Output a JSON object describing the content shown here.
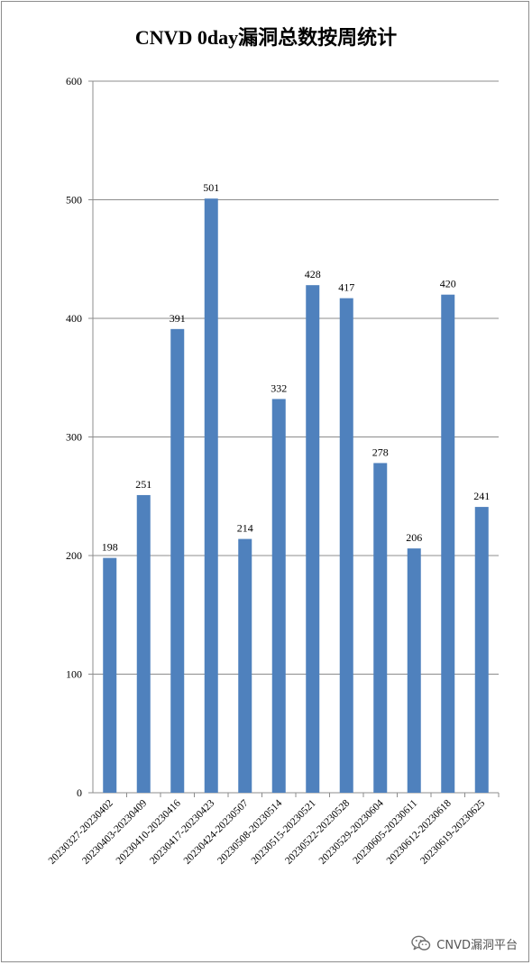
{
  "chart_data": {
    "type": "bar",
    "title": "CNVD 0day漏洞总数按周统计",
    "xlabel": "",
    "ylabel": "",
    "ylim": [
      0,
      600
    ],
    "yticks": [
      0,
      100,
      200,
      300,
      400,
      500,
      600
    ],
    "grid": true,
    "legend": "none",
    "bar_color": "#4f81bd",
    "categories": [
      "20230327-20230402",
      "20230403-20230409",
      "20230410-20230416",
      "20230417-20230423",
      "20230424-20230507",
      "20230508-20230514",
      "20230515-20230521",
      "20230522-20230528",
      "20230529-20230604",
      "20230605-20230611",
      "20230612-20230618",
      "20230619-20230625"
    ],
    "values": [
      198,
      251,
      391,
      501,
      214,
      332,
      428,
      417,
      278,
      206,
      420,
      241
    ]
  },
  "watermark": {
    "icon": "wechat-icon",
    "text": "CNVD漏洞平台"
  }
}
